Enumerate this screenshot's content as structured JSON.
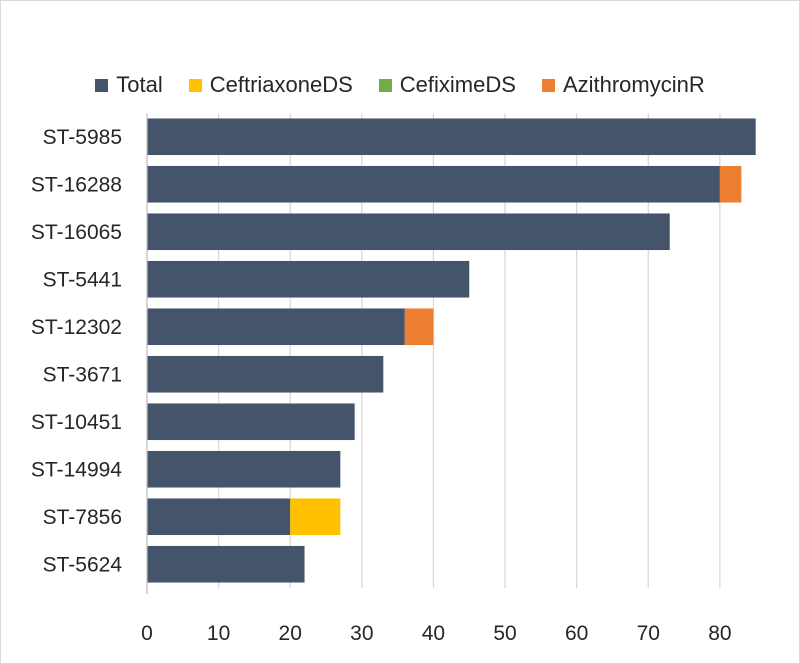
{
  "chart_data": {
    "type": "bar",
    "orientation": "horizontal",
    "stacked": true,
    "categories": [
      "ST-5985",
      "ST-16288",
      "ST-16065",
      "ST-5441",
      "ST-12302",
      "ST-3671",
      "ST-10451",
      "ST-14994",
      "ST-7856",
      "ST-5624"
    ],
    "series": [
      {
        "name": "Total",
        "color": "#44546a",
        "values": [
          85,
          80,
          73,
          45,
          36,
          33,
          29,
          27,
          20,
          22
        ]
      },
      {
        "name": "CeftriaxoneDS",
        "color": "#ffc000",
        "values": [
          0,
          0,
          0,
          0,
          0,
          0,
          0,
          0,
          7,
          0
        ]
      },
      {
        "name": "CefiximeDS",
        "color": "#70ad47",
        "values": [
          0,
          0,
          0,
          0,
          0,
          0,
          0,
          0,
          0,
          0
        ]
      },
      {
        "name": "AzithromycinR",
        "color": "#ed7d31",
        "values": [
          0,
          3,
          0,
          0,
          4,
          0,
          0,
          0,
          0,
          0
        ]
      }
    ],
    "xlim": [
      0,
      87
    ],
    "xticks": [
      0,
      10,
      20,
      30,
      40,
      50,
      60,
      70,
      80
    ],
    "grid": true,
    "legend_position": "top",
    "title": "",
    "xlabel": "",
    "ylabel": ""
  }
}
